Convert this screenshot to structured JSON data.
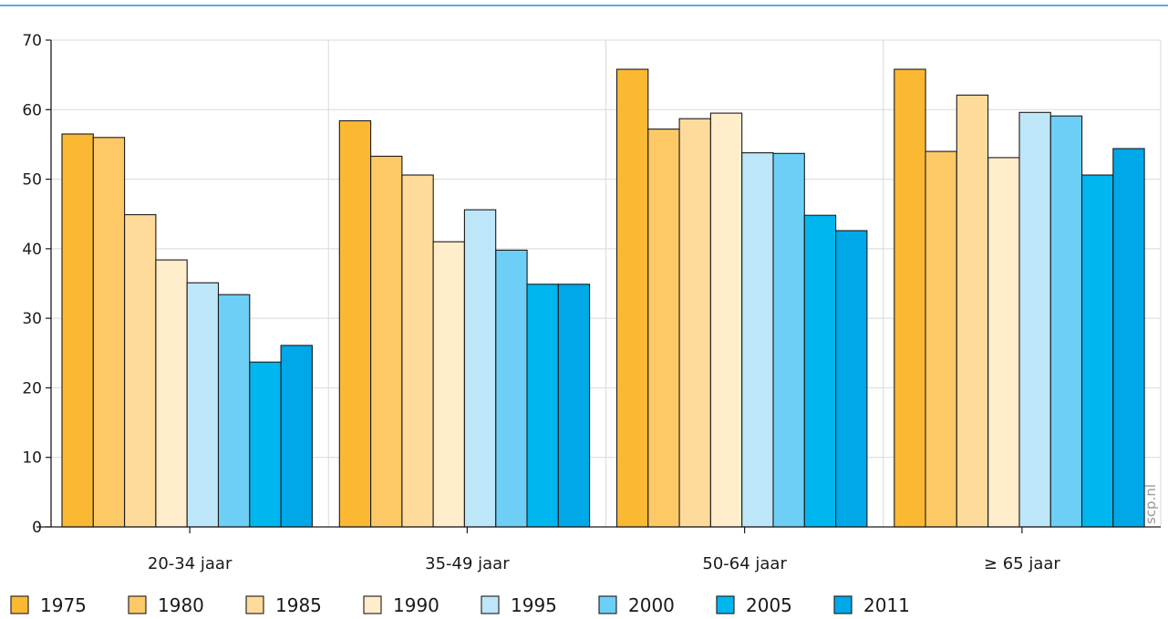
{
  "chart_data": {
    "type": "bar",
    "categories": [
      "20-34 jaar",
      "35-49 jaar",
      "50-64 jaar",
      "≥ 65 jaar"
    ],
    "series": [
      {
        "name": "1975",
        "color": "#FBB832",
        "values": [
          56.5,
          58.4,
          65.8,
          65.8
        ]
      },
      {
        "name": "1980",
        "color": "#FDC866",
        "values": [
          56.0,
          53.3,
          57.2,
          54.0
        ]
      },
      {
        "name": "1985",
        "color": "#FEDB9A",
        "values": [
          44.9,
          50.6,
          58.7,
          62.1
        ]
      },
      {
        "name": "1990",
        "color": "#FFEDCC",
        "values": [
          38.4,
          41.0,
          59.5,
          53.1
        ]
      },
      {
        "name": "1995",
        "color": "#BEE6F9",
        "values": [
          35.1,
          45.6,
          53.8,
          59.6
        ]
      },
      {
        "name": "2000",
        "color": "#6DCFF6",
        "values": [
          33.4,
          39.8,
          53.7,
          59.1
        ]
      },
      {
        "name": "2005",
        "color": "#00B6EF",
        "values": [
          23.7,
          34.9,
          44.8,
          50.6
        ]
      },
      {
        "name": "2011",
        "color": "#00A8E8",
        "values": [
          26.1,
          34.9,
          42.6,
          54.4
        ]
      }
    ],
    "title": "",
    "xlabel": "",
    "ylabel": "",
    "ylim": [
      0,
      70
    ],
    "yticks": [
      "0",
      "10",
      "20",
      "30",
      "40",
      "50",
      "60",
      "70"
    ],
    "grid": true,
    "legend": "bottom",
    "watermark": "scp.nl",
    "top_rule_color": "#2A8FD6"
  }
}
